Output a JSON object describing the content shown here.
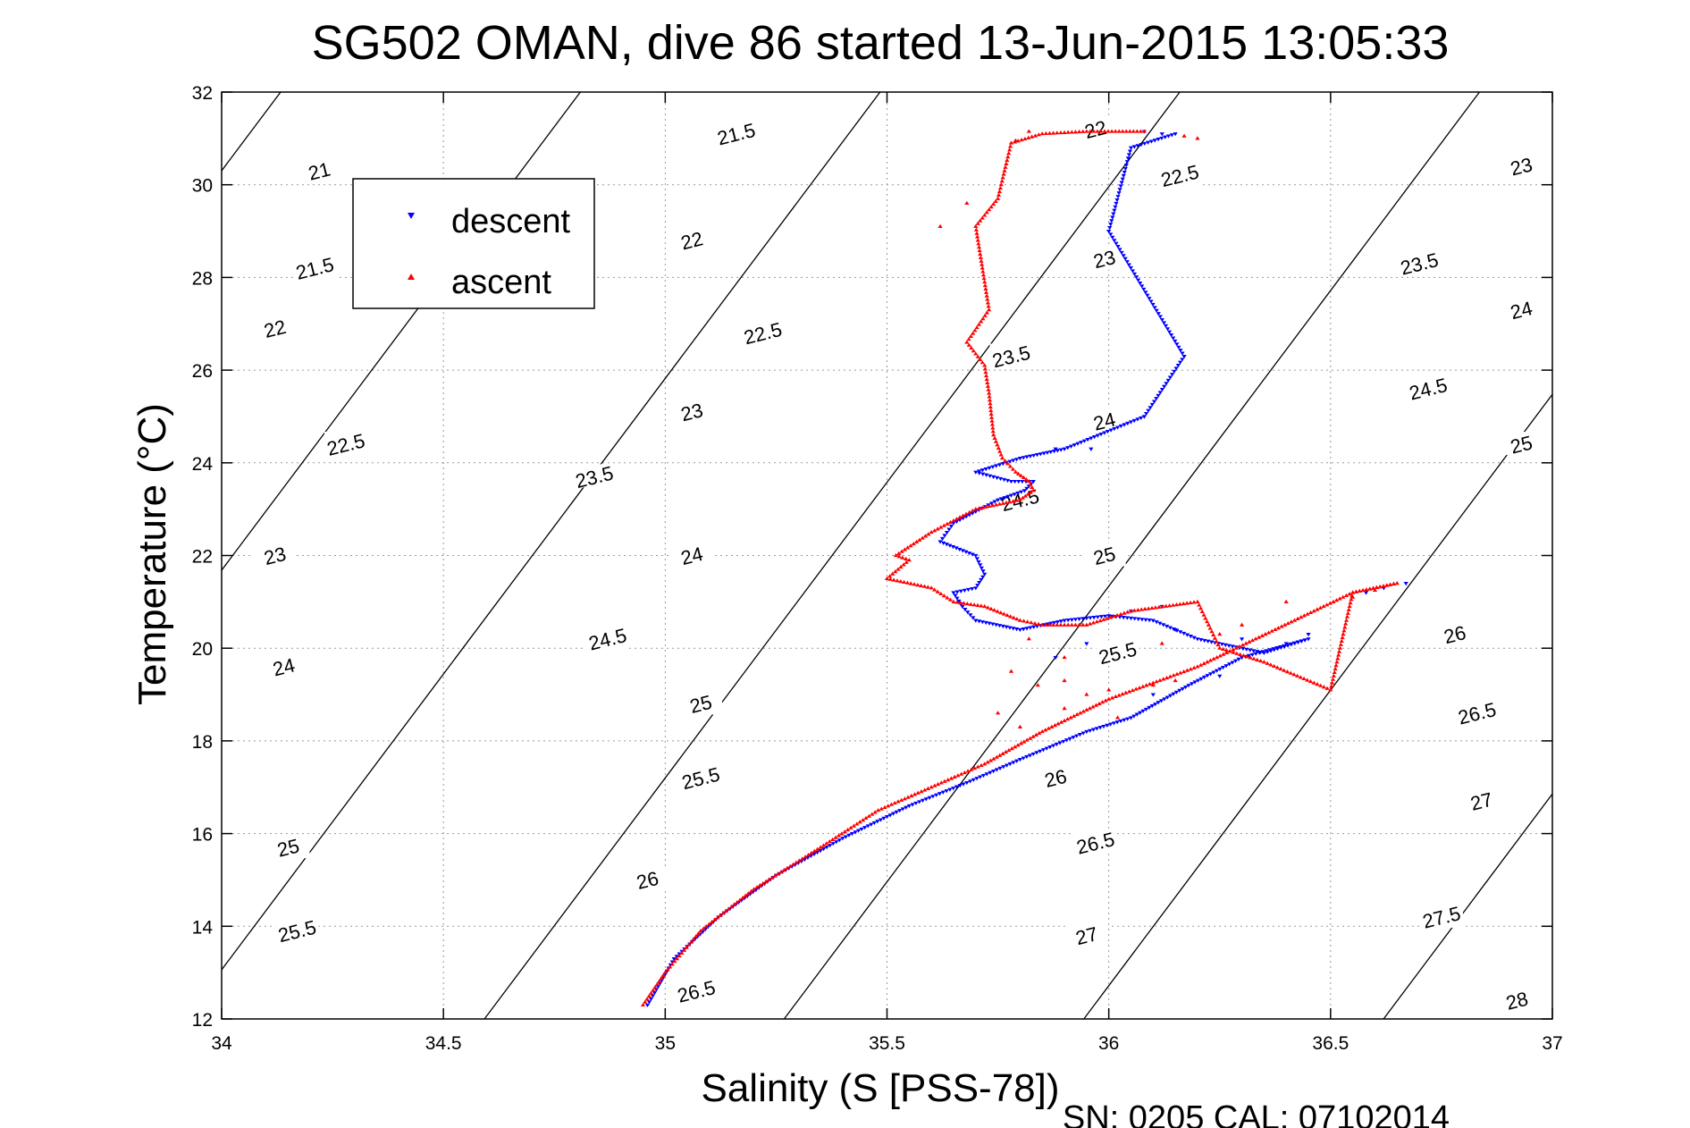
{
  "chart_data": {
    "type": "scatter",
    "title": "SG502 OMAN, dive 86 started 13-Jun-2015 13:05:33",
    "xlabel": "Salinity (S [PSS-78])",
    "ylabel": "Temperature (°C)",
    "xlim": [
      34,
      37
    ],
    "ylim": [
      12,
      32
    ],
    "xticks": [
      34,
      34.5,
      35,
      35.5,
      36,
      36.5,
      37
    ],
    "xtick_labels": [
      "34",
      "34.5",
      "35",
      "35.5",
      "36",
      "36.5",
      "37"
    ],
    "yticks": [
      12,
      14,
      16,
      18,
      20,
      22,
      24,
      26,
      28,
      30,
      32
    ],
    "ytick_labels": [
      "12",
      "14",
      "16",
      "18",
      "20",
      "22",
      "24",
      "26",
      "28",
      "30",
      "32"
    ],
    "grid": true,
    "legend_position": "top-left",
    "footer": "SN: 0205  CAL: 07102014",
    "contours": {
      "description": "potential density (sigma-theta) isopycnals",
      "levels": [
        21,
        21.5,
        22,
        22.5,
        23,
        23.5,
        24,
        24.5,
        25,
        25.5,
        26,
        26.5,
        27,
        27.5,
        28
      ],
      "labels": [
        {
          "text": "21",
          "s": 34.22,
          "t": 30.3
        },
        {
          "text": "21.5",
          "s": 35.16,
          "t": 31.1
        },
        {
          "text": "21.5",
          "s": 34.21,
          "t": 28.2
        },
        {
          "text": "22",
          "s": 35.06,
          "t": 28.8
        },
        {
          "text": "22",
          "s": 35.97,
          "t": 31.2
        },
        {
          "text": "22",
          "s": 34.12,
          "t": 26.9
        },
        {
          "text": "22.5",
          "s": 35.22,
          "t": 26.8
        },
        {
          "text": "22.5",
          "s": 36.16,
          "t": 30.2
        },
        {
          "text": "22.5",
          "s": 34.28,
          "t": 24.4
        },
        {
          "text": "23",
          "s": 35.06,
          "t": 25.1
        },
        {
          "text": "23",
          "s": 35.99,
          "t": 28.4
        },
        {
          "text": "23",
          "s": 36.93,
          "t": 30.4
        },
        {
          "text": "23",
          "s": 34.12,
          "t": 22.0
        },
        {
          "text": "23.5",
          "s": 34.84,
          "t": 23.7
        },
        {
          "text": "23.5",
          "s": 35.78,
          "t": 26.3
        },
        {
          "text": "23.5",
          "s": 36.7,
          "t": 28.3
        },
        {
          "text": "24",
          "s": 35.06,
          "t": 22.0
        },
        {
          "text": "24",
          "s": 35.99,
          "t": 24.9
        },
        {
          "text": "24",
          "s": 36.93,
          "t": 27.3
        },
        {
          "text": "24",
          "s": 34.14,
          "t": 19.6
        },
        {
          "text": "24.5",
          "s": 34.87,
          "t": 20.2
        },
        {
          "text": "24.5",
          "s": 35.8,
          "t": 23.2
        },
        {
          "text": "24.5",
          "s": 36.72,
          "t": 25.6
        },
        {
          "text": "25",
          "s": 35.08,
          "t": 18.8
        },
        {
          "text": "25",
          "s": 35.99,
          "t": 22.0
        },
        {
          "text": "25",
          "s": 36.93,
          "t": 24.4
        },
        {
          "text": "25",
          "s": 34.15,
          "t": 15.7
        },
        {
          "text": "25.5",
          "s": 35.08,
          "t": 17.2
        },
        {
          "text": "25.5",
          "s": 36.02,
          "t": 19.9
        },
        {
          "text": "25.5",
          "s": 34.17,
          "t": 13.9
        },
        {
          "text": "26",
          "s": 34.96,
          "t": 15.0
        },
        {
          "text": "26",
          "s": 35.88,
          "t": 17.2
        },
        {
          "text": "26",
          "s": 36.78,
          "t": 20.3
        },
        {
          "text": "26.5",
          "s": 35.07,
          "t": 12.6
        },
        {
          "text": "26.5",
          "s": 35.97,
          "t": 15.8
        },
        {
          "text": "26.5",
          "s": 36.83,
          "t": 18.6
        },
        {
          "text": "27",
          "s": 35.95,
          "t": 13.8
        },
        {
          "text": "27",
          "s": 36.84,
          "t": 16.7
        },
        {
          "text": "27.5",
          "s": 36.75,
          "t": 14.2
        },
        {
          "text": "28",
          "s": 36.92,
          "t": 12.4
        }
      ]
    },
    "series": [
      {
        "name": "descent",
        "marker": "triangle-down",
        "color": "#0000ff",
        "path": [
          [
            36.15,
            31.1
          ],
          [
            36.05,
            30.8
          ],
          [
            36.0,
            29.0
          ],
          [
            36.17,
            26.3
          ],
          [
            36.08,
            25.0
          ],
          [
            35.9,
            24.3
          ],
          [
            35.8,
            24.1
          ],
          [
            35.7,
            23.8
          ],
          [
            35.78,
            23.6
          ],
          [
            35.83,
            23.6
          ],
          [
            35.81,
            23.4
          ],
          [
            35.75,
            23.2
          ],
          [
            35.65,
            22.7
          ],
          [
            35.62,
            22.3
          ],
          [
            35.7,
            22.0
          ],
          [
            35.72,
            21.6
          ],
          [
            35.7,
            21.3
          ],
          [
            35.65,
            21.2
          ],
          [
            35.67,
            20.9
          ],
          [
            35.7,
            20.6
          ],
          [
            35.8,
            20.4
          ],
          [
            35.9,
            20.6
          ],
          [
            36.0,
            20.7
          ],
          [
            36.1,
            20.6
          ],
          [
            36.2,
            20.2
          ],
          [
            36.35,
            19.9
          ],
          [
            36.45,
            20.2
          ],
          [
            36.3,
            19.8
          ],
          [
            36.18,
            19.2
          ],
          [
            36.05,
            18.5
          ],
          [
            35.95,
            18.2
          ],
          [
            35.8,
            17.6
          ],
          [
            35.68,
            17.1
          ],
          [
            35.55,
            16.6
          ],
          [
            35.4,
            15.9
          ],
          [
            35.25,
            15.1
          ],
          [
            35.12,
            14.2
          ],
          [
            35.02,
            13.3
          ],
          [
            34.96,
            12.3
          ]
        ],
        "scattered": [
          [
            36.08,
            31.15
          ],
          [
            36.12,
            31.1
          ],
          [
            36.0,
            29.0
          ],
          [
            36.17,
            26.3
          ],
          [
            36.08,
            25.0
          ],
          [
            35.96,
            24.3
          ],
          [
            35.88,
            24.3
          ],
          [
            36.62,
            21.3
          ],
          [
            36.67,
            21.4
          ],
          [
            36.58,
            21.2
          ],
          [
            36.45,
            20.3
          ],
          [
            36.4,
            20.1
          ],
          [
            36.25,
            19.4
          ],
          [
            36.1,
            19.0
          ],
          [
            36.15,
            20.4
          ],
          [
            35.95,
            20.1
          ],
          [
            35.88,
            19.8
          ],
          [
            36.3,
            20.2
          ],
          [
            36.05,
            20.8
          ],
          [
            36.12,
            20.9
          ]
        ]
      },
      {
        "name": "ascent",
        "marker": "triangle-up",
        "color": "#ff0000",
        "path": [
          [
            36.08,
            31.15
          ],
          [
            35.95,
            31.15
          ],
          [
            35.85,
            31.1
          ],
          [
            35.78,
            30.9
          ],
          [
            35.75,
            29.7
          ],
          [
            35.7,
            29.1
          ],
          [
            35.73,
            27.3
          ],
          [
            35.68,
            26.6
          ],
          [
            35.72,
            26.1
          ],
          [
            35.73,
            25.5
          ],
          [
            35.74,
            24.6
          ],
          [
            35.76,
            24.1
          ],
          [
            35.79,
            23.8
          ],
          [
            35.82,
            23.6
          ],
          [
            35.83,
            23.4
          ],
          [
            35.8,
            23.2
          ],
          [
            35.7,
            23.0
          ],
          [
            35.6,
            22.5
          ],
          [
            35.52,
            22.0
          ],
          [
            35.55,
            21.9
          ],
          [
            35.5,
            21.5
          ],
          [
            35.6,
            21.3
          ],
          [
            35.65,
            21.0
          ],
          [
            35.72,
            20.9
          ],
          [
            35.8,
            20.6
          ],
          [
            35.85,
            20.5
          ],
          [
            35.95,
            20.5
          ],
          [
            36.05,
            20.8
          ],
          [
            36.2,
            21.0
          ],
          [
            36.25,
            20.0
          ],
          [
            36.35,
            19.7
          ],
          [
            36.5,
            19.1
          ],
          [
            36.55,
            21.2
          ],
          [
            36.65,
            21.4
          ],
          [
            36.55,
            21.2
          ],
          [
            36.2,
            19.6
          ],
          [
            36.0,
            18.9
          ],
          [
            35.85,
            18.2
          ],
          [
            35.72,
            17.5
          ],
          [
            35.6,
            17.0
          ],
          [
            35.48,
            16.5
          ],
          [
            35.35,
            15.7
          ],
          [
            35.2,
            14.8
          ],
          [
            35.08,
            13.9
          ],
          [
            35.0,
            13.0
          ],
          [
            34.95,
            12.3
          ]
        ],
        "scattered": [
          [
            35.82,
            31.15
          ],
          [
            35.79,
            30.95
          ],
          [
            35.62,
            29.1
          ],
          [
            35.68,
            29.6
          ],
          [
            36.17,
            31.05
          ],
          [
            36.2,
            31.0
          ],
          [
            35.84,
            19.2
          ],
          [
            35.9,
            19.3
          ],
          [
            35.78,
            19.5
          ],
          [
            35.95,
            19.0
          ],
          [
            36.0,
            19.1
          ],
          [
            36.1,
            19.2
          ],
          [
            36.15,
            19.3
          ],
          [
            35.8,
            18.3
          ],
          [
            35.75,
            18.6
          ],
          [
            35.9,
            18.7
          ],
          [
            36.02,
            18.5
          ],
          [
            36.4,
            21.0
          ],
          [
            36.55,
            21.1
          ],
          [
            36.6,
            21.25
          ],
          [
            36.25,
            20.3
          ],
          [
            36.3,
            20.5
          ],
          [
            36.12,
            20.1
          ],
          [
            35.9,
            19.8
          ],
          [
            35.82,
            20.2
          ]
        ]
      }
    ]
  }
}
